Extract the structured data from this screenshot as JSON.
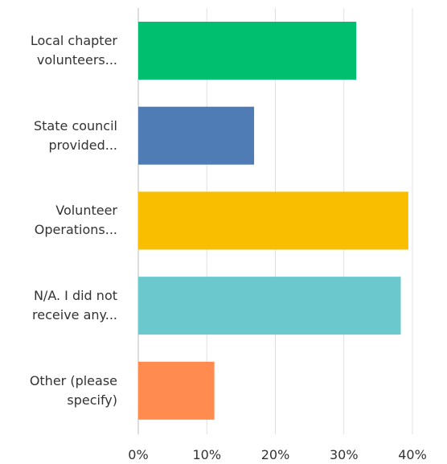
{
  "chart_data": {
    "type": "bar",
    "orientation": "horizontal",
    "categories": [
      "Local chapter volunteers...",
      "State council provided...",
      "Volunteer Operations...",
      "N/A. I did not receive any...",
      "Other (please specify)"
    ],
    "values": [
      31.8,
      16.9,
      39.4,
      38.3,
      11.1
    ],
    "colors": [
      "#00bf6f",
      "#507cb6",
      "#f9be00",
      "#6bc8cd",
      "#ff8b4f"
    ],
    "xlim": [
      0,
      40
    ],
    "xticks": [
      {
        "value": 0,
        "label": "0%"
      },
      {
        "value": 10,
        "label": "10%"
      },
      {
        "value": 20,
        "label": "20%"
      },
      {
        "value": 30,
        "label": "30%"
      },
      {
        "value": 40,
        "label": "40%"
      }
    ],
    "grid": true
  }
}
